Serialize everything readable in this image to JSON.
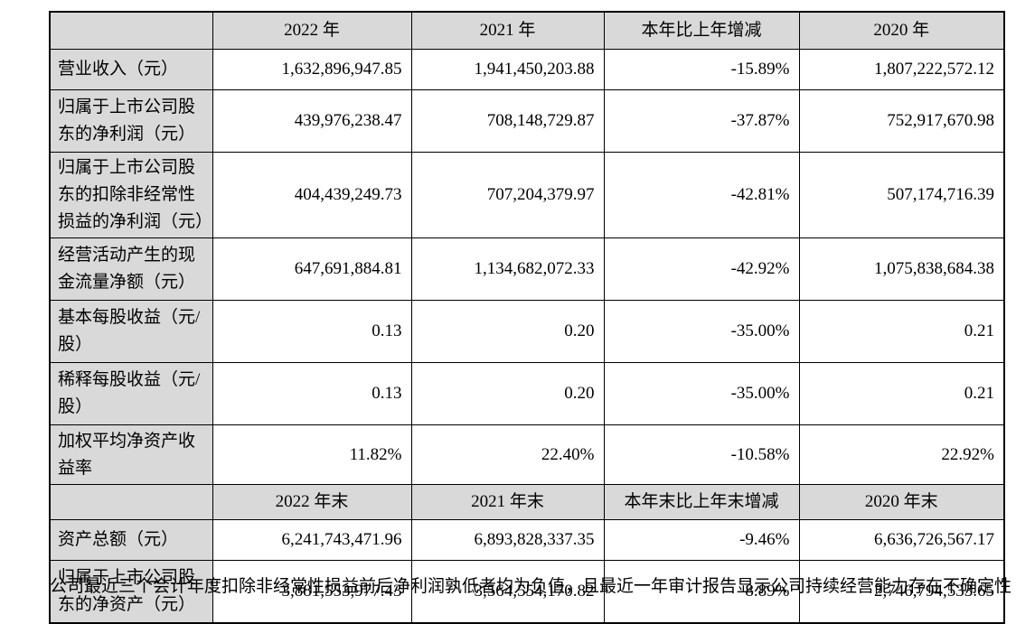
{
  "colors": {
    "header_fill": "#d9d9d9",
    "border": "#000000",
    "text": "#000000",
    "page_background": "#ffffff"
  },
  "table": {
    "rows": [
      {
        "kind": "header",
        "label": "",
        "values": [
          "2022 年",
          "2021 年",
          "本年比上年增减",
          "2020 年"
        ]
      },
      {
        "kind": "data",
        "label": "营业收入（元）",
        "values": [
          "1,632,896,947.85",
          "1,941,450,203.88",
          "-15.89%",
          "1,807,222,572.12"
        ]
      },
      {
        "kind": "data",
        "label": "归属于上市公司股东的净利润（元）",
        "values": [
          "439,976,238.47",
          "708,148,729.87",
          "-37.87%",
          "752,917,670.98"
        ]
      },
      {
        "kind": "data",
        "label": "归属于上市公司股东的扣除非经常性损益的净利润（元）",
        "values": [
          "404,439,249.73",
          "707,204,379.97",
          "-42.81%",
          "507,174,716.39"
        ]
      },
      {
        "kind": "data",
        "label": "经营活动产生的现金流量净额（元）",
        "values": [
          "647,691,884.81",
          "1,134,682,072.33",
          "-42.92%",
          "1,075,838,684.38"
        ]
      },
      {
        "kind": "data",
        "label": "基本每股收益（元/股）",
        "values": [
          "0.13",
          "0.20",
          "-35.00%",
          "0.21"
        ]
      },
      {
        "kind": "data",
        "label": "稀释每股收益（元/股）",
        "values": [
          "0.13",
          "0.20",
          "-35.00%",
          "0.21"
        ]
      },
      {
        "kind": "data",
        "label": "加权平均净资产收益率",
        "values": [
          "11.82%",
          "22.40%",
          "-10.58%",
          "22.92%"
        ]
      },
      {
        "kind": "header",
        "label": "",
        "values": [
          "2022 年末",
          "2021 年末",
          "本年末比上年末增减",
          "2020 年末"
        ]
      },
      {
        "kind": "data",
        "label": "资产总额（元）",
        "values": [
          "6,241,743,471.96",
          "6,893,828,337.35",
          "-9.46%",
          "6,636,726,567.17"
        ]
      },
      {
        "kind": "data",
        "label": "归属于上市公司股东的净资产（元）",
        "values": [
          "3,881,553,977.43",
          "3,564,554,170.82",
          "8.89%",
          "2,746,794,533.65"
        ]
      }
    ]
  },
  "footnote": {
    "clipped_text": "公司最近三个会计年度扣除非经常性损益前后净利润孰低者均为负值，且最近一年审计报告显示公司持续经营能力存在不确定性"
  }
}
